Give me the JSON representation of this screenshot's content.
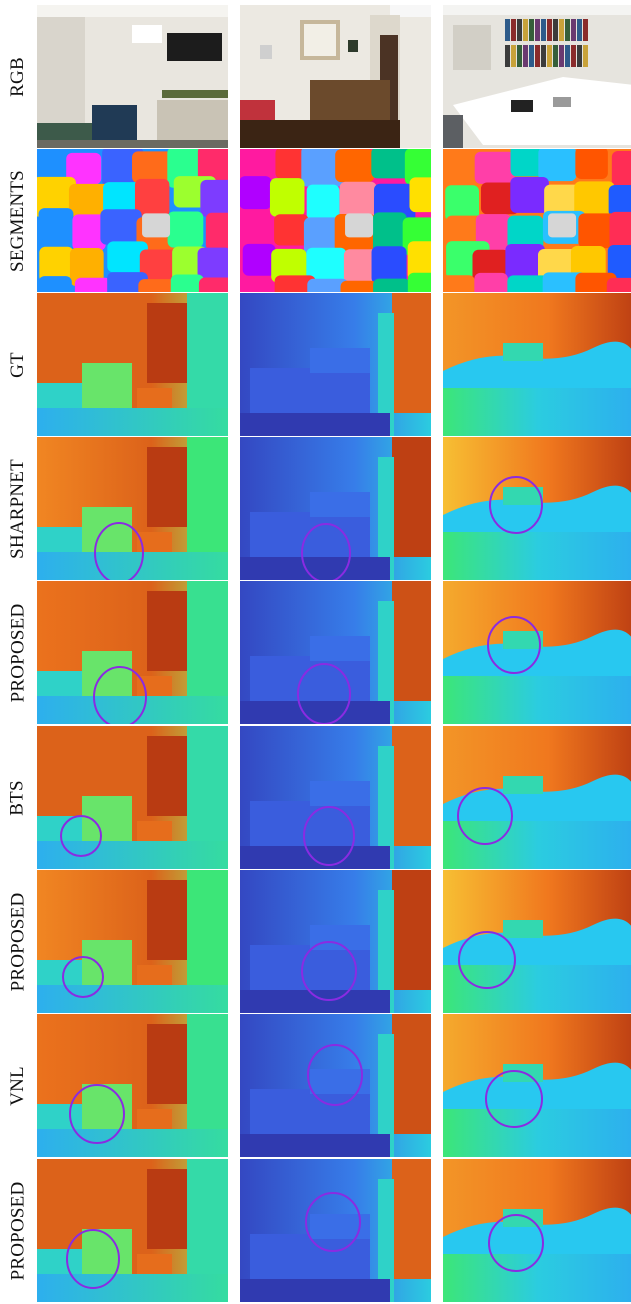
{
  "figure": {
    "rows": [
      {
        "key": "rgb",
        "label": "RGB",
        "type": "rgb"
      },
      {
        "key": "seg",
        "label": "SEGMENTS",
        "type": "seg"
      },
      {
        "key": "gt",
        "label": "GT",
        "type": "depth"
      },
      {
        "key": "sharpnet",
        "label": "SHARPNET",
        "type": "depth",
        "circled": true
      },
      {
        "key": "proposed1",
        "label": "PROPOSED",
        "type": "depth",
        "circled": true
      },
      {
        "key": "bts",
        "label": "BTS",
        "type": "depth",
        "circled": true
      },
      {
        "key": "proposed2",
        "label": "PROPOSED",
        "type": "depth",
        "circled": true
      },
      {
        "key": "vnl",
        "label": "VNL",
        "type": "depth",
        "circled": true
      },
      {
        "key": "proposed3",
        "label": "PROPOSED",
        "type": "depth",
        "circled": true
      }
    ],
    "scenes": [
      {
        "key": "kitchen",
        "description": "office kitchenette"
      },
      {
        "key": "office",
        "description": "office with desk"
      },
      {
        "key": "lab",
        "description": "room with shelves and table"
      }
    ],
    "colors": {
      "circle": "#8a2be2",
      "depth_near": "#3aa0ff",
      "depth_far": "#c8401a",
      "background": "#ffffff"
    }
  }
}
